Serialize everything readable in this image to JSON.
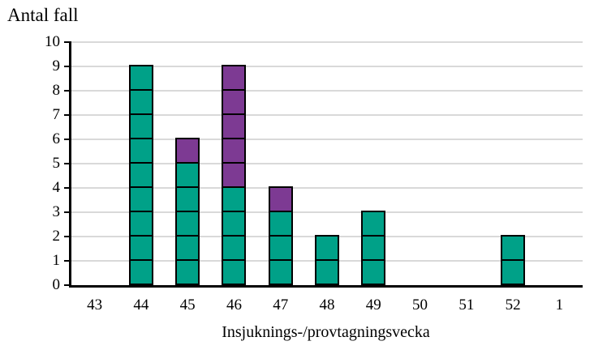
{
  "chart_data": {
    "type": "bar",
    "subtype": "stacked-unit-cells",
    "title": "Antal fall",
    "xlabel": "Insjuknings-/provtagningsvecka",
    "ylabel": "Antal fall",
    "categories": [
      "43",
      "44",
      "45",
      "46",
      "47",
      "48",
      "49",
      "50",
      "51",
      "52",
      "1"
    ],
    "series": [
      {
        "name": "series-teal",
        "color": "#00A188",
        "values": [
          0,
          9,
          5,
          4,
          3,
          2,
          3,
          0,
          0,
          2,
          0
        ]
      },
      {
        "name": "series-purple",
        "color": "#7D3A93",
        "values": [
          0,
          0,
          1,
          5,
          1,
          0,
          0,
          0,
          0,
          0,
          0
        ]
      }
    ],
    "totals": [
      0,
      9,
      6,
      9,
      4,
      2,
      3,
      0,
      0,
      2,
      0
    ],
    "ylim": [
      0,
      10
    ],
    "yticks": [
      0,
      1,
      2,
      3,
      4,
      5,
      6,
      7,
      8,
      9,
      10
    ],
    "grid": "horizontal",
    "gridline_color": "#D9D9D9",
    "axis_color": "#000000",
    "cell_border_color": "#000000",
    "legend": "none"
  }
}
